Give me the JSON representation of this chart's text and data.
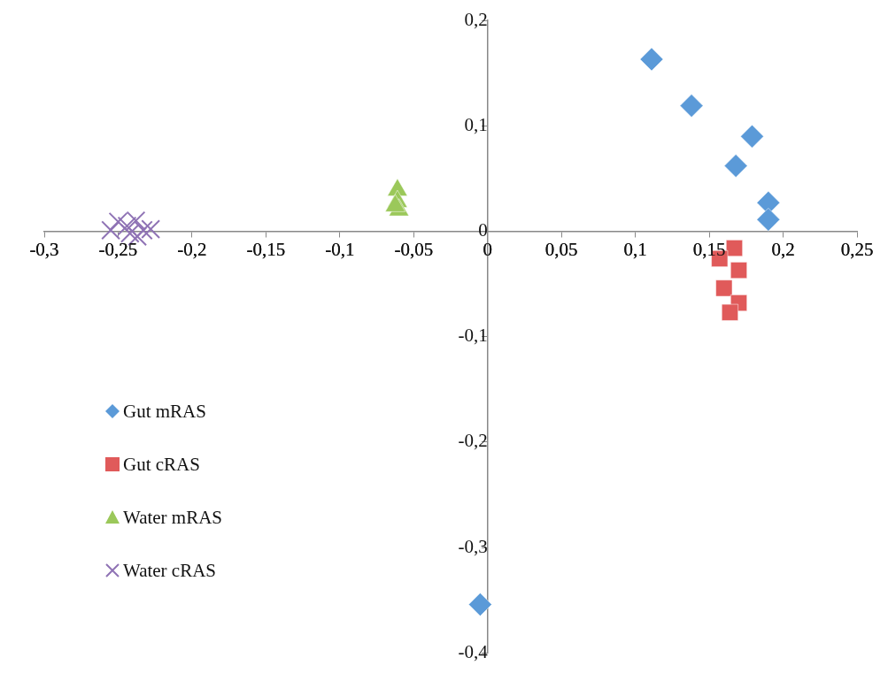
{
  "chart_data": {
    "type": "scatter",
    "legend": "left",
    "grid": false,
    "xlim": [
      -0.3,
      0.25
    ],
    "ylim": [
      -0.4,
      0.2
    ],
    "xticks": [
      {
        "value": -0.3,
        "label": "-0,3"
      },
      {
        "value": -0.25,
        "label": "-0,25"
      },
      {
        "value": -0.2,
        "label": "-0,2"
      },
      {
        "value": -0.15,
        "label": "-0,15"
      },
      {
        "value": -0.1,
        "label": "-0,1"
      },
      {
        "value": -0.05,
        "label": "-0,05"
      },
      0,
      {
        "value": 0.05,
        "label": "0,05"
      },
      {
        "value": 0.1,
        "label": "0,1"
      },
      {
        "value": 0.15,
        "label": "0,15"
      },
      {
        "value": 0.2,
        "label": "0,2"
      },
      {
        "value": 0.25,
        "label": "0,25"
      }
    ],
    "yticks": [
      {
        "value": -0.4,
        "label": "-0,4"
      },
      {
        "value": -0.3,
        "label": "-0,3"
      },
      {
        "value": -0.2,
        "label": "-0,2"
      },
      {
        "value": -0.1,
        "label": "-0,1"
      },
      0,
      {
        "value": 0.1,
        "label": "0,1"
      },
      {
        "value": 0.2,
        "label": "0,2"
      }
    ],
    "series": [
      {
        "name": "Gut mRAS",
        "color": "#5b9ad8",
        "marker": "diamond",
        "x": [
          0.111,
          0.138,
          0.179,
          0.168,
          0.19,
          0.19,
          -0.005
        ],
        "values": [
          0.163,
          0.119,
          0.09,
          0.062,
          0.027,
          0.011,
          -0.354
        ]
      },
      {
        "name": "Gut cRAS",
        "color": "#e05a5a",
        "marker": "square",
        "x": [
          0.167,
          0.17,
          0.16,
          0.17,
          0.157,
          0.164
        ],
        "values": [
          -0.016,
          -0.037,
          -0.054,
          -0.068,
          -0.026,
          -0.077
        ]
      },
      {
        "name": "Water mRAS",
        "color": "#9bc85a",
        "marker": "triangle",
        "x": [
          -0.061,
          -0.061,
          -0.06,
          -0.0625
        ],
        "values": [
          0.039,
          0.028,
          0.02,
          0.024
        ]
      },
      {
        "name": "Water cRAS",
        "color": "#8f73b5",
        "marker": "cross",
        "x": [
          -0.25,
          -0.238,
          -0.255,
          -0.242,
          -0.233,
          -0.228,
          -0.237,
          -0.244
        ],
        "values": [
          0.009,
          0.01,
          0.001,
          -0.002,
          0.001,
          0.002,
          -0.005,
          0.005
        ]
      }
    ]
  }
}
